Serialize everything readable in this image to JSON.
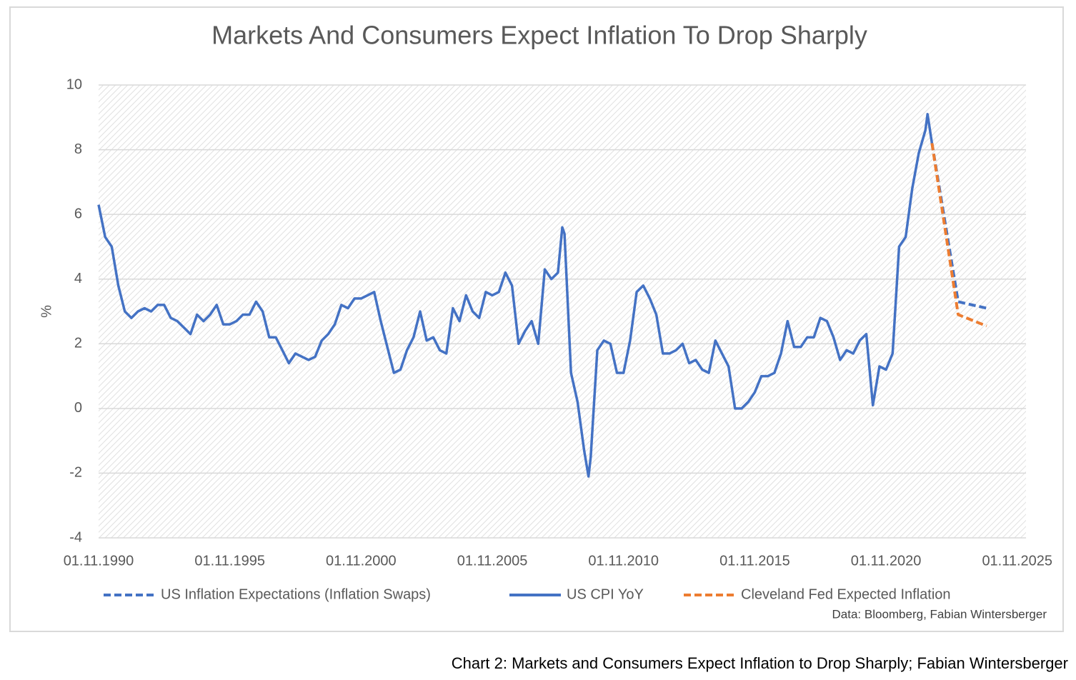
{
  "chart_data": {
    "type": "line",
    "title": "Markets And Consumers Expect Inflation To Drop Sharply",
    "ylabel": "%",
    "source": "Data: Bloomberg, Fabian Wintersberger",
    "caption": "Chart 2: Markets and Consumers Expect Inflation to Drop Sharply; Fabian Wintersberger",
    "ylim": [
      -4,
      10
    ],
    "yticks": [
      -4,
      -2,
      0,
      2,
      4,
      6,
      8,
      10
    ],
    "xlim": [
      "01.11.1990",
      "01.03.2026"
    ],
    "xticks": [
      "01.11.1990",
      "01.11.1995",
      "01.11.2000",
      "01.11.2005",
      "01.11.2010",
      "01.11.2015",
      "01.11.2020",
      "01.11.2025"
    ],
    "grid": true,
    "series": [
      {
        "name": "US Inflation Expectations (Inflation Swaps)",
        "color": "#4472c4",
        "dash": true,
        "x": [
          "01.08.2022",
          "01.08.2023",
          "01.09.2024"
        ],
        "values": [
          8.2,
          3.3,
          3.1
        ]
      },
      {
        "name": "US CPI YoY",
        "color": "#4472c4",
        "dash": false,
        "x": [
          "01.11.1990",
          "01.02.1991",
          "01.05.1991",
          "01.08.1991",
          "01.11.1991",
          "01.02.1992",
          "01.05.1992",
          "01.08.1992",
          "01.11.1992",
          "01.02.1993",
          "01.05.1993",
          "01.08.1993",
          "01.11.1993",
          "01.02.1994",
          "01.05.1994",
          "01.08.1994",
          "01.11.1994",
          "01.02.1995",
          "01.05.1995",
          "01.08.1995",
          "01.11.1995",
          "01.02.1996",
          "01.05.1996",
          "01.08.1996",
          "01.11.1996",
          "01.02.1997",
          "01.05.1997",
          "01.08.1997",
          "01.11.1997",
          "01.02.1998",
          "01.05.1998",
          "01.08.1998",
          "01.11.1998",
          "01.02.1999",
          "01.05.1999",
          "01.08.1999",
          "01.11.1999",
          "01.02.2000",
          "01.05.2000",
          "01.08.2000",
          "01.11.2000",
          "01.02.2001",
          "01.05.2001",
          "01.08.2001",
          "01.11.2001",
          "01.02.2002",
          "01.05.2002",
          "01.08.2002",
          "01.11.2002",
          "01.02.2003",
          "01.05.2003",
          "01.08.2003",
          "01.11.2003",
          "01.02.2004",
          "01.05.2004",
          "01.08.2004",
          "01.11.2004",
          "01.02.2005",
          "01.05.2005",
          "01.08.2005",
          "01.11.2005",
          "01.02.2006",
          "01.05.2006",
          "01.08.2006",
          "01.11.2006",
          "01.02.2007",
          "01.05.2007",
          "01.08.2007",
          "01.11.2007",
          "01.02.2008",
          "01.05.2008",
          "01.07.2008",
          "01.08.2008",
          "01.11.2008",
          "01.02.2009",
          "01.05.2009",
          "01.07.2009",
          "01.08.2009",
          "01.11.2009",
          "01.02.2010",
          "01.05.2010",
          "01.08.2010",
          "01.11.2010",
          "01.02.2011",
          "01.05.2011",
          "01.08.2011",
          "01.11.2011",
          "01.02.2012",
          "01.05.2012",
          "01.08.2012",
          "01.11.2012",
          "01.02.2013",
          "01.05.2013",
          "01.08.2013",
          "01.11.2013",
          "01.02.2014",
          "01.05.2014",
          "01.08.2014",
          "01.11.2014",
          "01.02.2015",
          "01.05.2015",
          "01.08.2015",
          "01.11.2015",
          "01.02.2016",
          "01.05.2016",
          "01.08.2016",
          "01.11.2016",
          "01.02.2017",
          "01.05.2017",
          "01.08.2017",
          "01.11.2017",
          "01.02.2018",
          "01.05.2018",
          "01.08.2018",
          "01.11.2018",
          "01.02.2019",
          "01.05.2019",
          "01.08.2019",
          "01.11.2019",
          "01.02.2020",
          "01.05.2020",
          "01.08.2020",
          "01.11.2020",
          "01.02.2021",
          "01.05.2021",
          "01.08.2021",
          "01.11.2021",
          "01.02.2022",
          "01.05.2022",
          "01.06.2022",
          "01.08.2022"
        ],
        "values": [
          6.3,
          5.3,
          5.0,
          3.8,
          3.0,
          2.8,
          3.0,
          3.1,
          3.0,
          3.2,
          3.2,
          2.8,
          2.7,
          2.5,
          2.3,
          2.9,
          2.7,
          2.9,
          3.2,
          2.6,
          2.6,
          2.7,
          2.9,
          2.9,
          3.3,
          3.0,
          2.2,
          2.2,
          1.8,
          1.4,
          1.7,
          1.6,
          1.5,
          1.6,
          2.1,
          2.3,
          2.6,
          3.2,
          3.1,
          3.4,
          3.4,
          3.5,
          3.6,
          2.7,
          1.9,
          1.1,
          1.2,
          1.8,
          2.2,
          3.0,
          2.1,
          2.2,
          1.8,
          1.7,
          3.1,
          2.7,
          3.5,
          3.0,
          2.8,
          3.6,
          3.5,
          3.6,
          4.2,
          3.8,
          2.0,
          2.4,
          2.7,
          2.0,
          4.3,
          4.0,
          4.2,
          5.6,
          5.4,
          1.1,
          0.2,
          -1.3,
          -2.1,
          -1.5,
          1.8,
          2.1,
          2.0,
          1.1,
          1.1,
          2.1,
          3.6,
          3.8,
          3.4,
          2.9,
          1.7,
          1.7,
          1.8,
          2.0,
          1.4,
          1.5,
          1.2,
          1.1,
          2.1,
          1.7,
          1.3,
          0.0,
          0.0,
          0.2,
          0.5,
          1.0,
          1.0,
          1.1,
          1.7,
          2.7,
          1.9,
          1.9,
          2.2,
          2.2,
          2.8,
          2.7,
          2.2,
          1.5,
          1.8,
          1.7,
          2.1,
          2.3,
          0.1,
          1.3,
          1.2,
          1.7,
          5.0,
          5.3,
          6.8,
          7.9,
          8.6,
          9.1,
          8.2
        ]
      },
      {
        "name": "Cleveland Fed Expected Inflation",
        "color": "#ed7d31",
        "dash": true,
        "x": [
          "01.08.2022",
          "01.08.2023",
          "01.09.2024"
        ],
        "values": [
          8.2,
          2.9,
          2.55
        ]
      }
    ]
  }
}
